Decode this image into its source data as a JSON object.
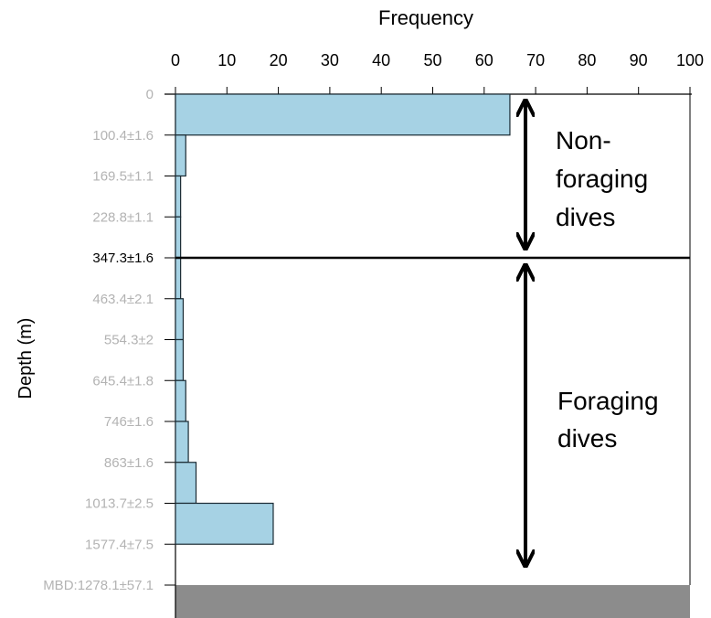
{
  "chart_data": {
    "type": "bar",
    "orientation": "horizontal",
    "xlabel": "Frequency",
    "ylabel": "Depth (m)",
    "xlim": [
      0,
      100
    ],
    "x_ticks": [
      "0",
      "10",
      "20",
      "30",
      "40",
      "50",
      "60",
      "70",
      "80",
      "90",
      "100"
    ],
    "y_tick_labels": [
      "0",
      "100.4±1.6",
      "169.5±1.1",
      "228.8±1.1",
      "347.3±1.6",
      "463.4±2.1",
      "554.3±2",
      "645.4±1.8",
      "746±1.6",
      "863±1.6",
      "1013.7±2.5",
      "1577.4±7.5",
      "MBD:1278.1±57.1"
    ],
    "highlighted_tick": "347.3±1.6",
    "bins": [
      {
        "from": "0",
        "to": "100.4±1.6",
        "value": 65
      },
      {
        "from": "100.4±1.6",
        "to": "169.5±1.1",
        "value": 2
      },
      {
        "from": "169.5±1.1",
        "to": "228.8±1.1",
        "value": 1
      },
      {
        "from": "228.8±1.1",
        "to": "347.3±1.6",
        "value": 1
      },
      {
        "from": "347.3±1.6",
        "to": "463.4±2.1",
        "value": 1
      },
      {
        "from": "463.4±2.1",
        "to": "554.3±2",
        "value": 1.5
      },
      {
        "from": "554.3±2",
        "to": "645.4±1.8",
        "value": 1.5
      },
      {
        "from": "645.4±1.8",
        "to": "746±1.6",
        "value": 2
      },
      {
        "from": "746±1.6",
        "to": "863±1.6",
        "value": 2.5
      },
      {
        "from": "863±1.6",
        "to": "1013.7±2.5",
        "value": 4
      },
      {
        "from": "1013.7±2.5",
        "to": "1577.4±7.5",
        "value": 19
      }
    ],
    "annotations": {
      "upper": "Non-\nforaging\ndives",
      "lower": "Foraging\ndives"
    },
    "colors": {
      "bar_fill": "#a6d2e4",
      "bar_stroke": "#1a2a33",
      "seafloor": "#8c8c8c",
      "tick_label": "#b3b3b3",
      "highlight_label": "#000000"
    }
  }
}
